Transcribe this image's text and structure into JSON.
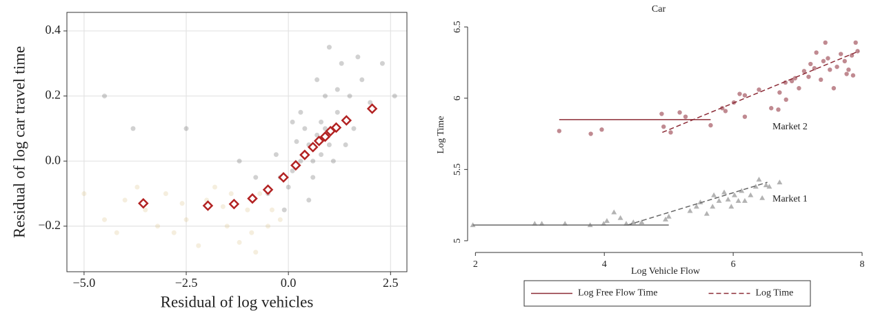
{
  "chart_data": [
    {
      "type": "scatter",
      "xlabel": "Residual of log vehicles",
      "ylabel": "Residual of log car travel time",
      "xlim": [
        -5.42,
        2.9
      ],
      "ylim": [
        -0.34,
        0.457
      ],
      "xticks": [
        {
          "value": -5.0,
          "label": "−5.0"
        },
        {
          "value": -2.5,
          "label": "−2.5"
        },
        {
          "value": 0.0,
          "label": "0.0"
        },
        {
          "value": 2.5,
          "label": "2.5"
        }
      ],
      "yticks": [
        {
          "value": -0.2,
          "label": "−0.2"
        },
        {
          "value": 0.0,
          "label": "0.0"
        },
        {
          "value": 0.2,
          "label": "0.2"
        },
        {
          "value": 0.4,
          "label": "0.4"
        }
      ],
      "grid": true,
      "series": [
        {
          "color": "#000000",
          "marker": "dot",
          "x": [
            0.5,
            0.7,
            0.9,
            0.3,
            0.1,
            1.2,
            1.5,
            0.8,
            0.6,
            1.0,
            0.2,
            -0.2,
            -0.5,
            0.0,
            1.8,
            1.3,
            0.4,
            0.9,
            1.1,
            2.0,
            -0.8,
            0.6,
            1.6,
            0.3,
            -0.3,
            2.3,
            1.0,
            0.7,
            0.5,
            1.4,
            -1.2,
            -2.5,
            -4.5,
            -3.8,
            2.6,
            0.1,
            0.8,
            1.2,
            -0.1,
            1.7
          ],
          "values": [
            0.05,
            0.08,
            0.1,
            0.0,
            -0.03,
            0.15,
            0.2,
            0.12,
            0.0,
            0.05,
            0.06,
            -0.05,
            -0.1,
            -0.08,
            0.25,
            0.3,
            0.1,
            0.2,
            0.0,
            0.18,
            -0.05,
            -0.05,
            0.1,
            0.15,
            0.02,
            0.3,
            0.35,
            0.25,
            -0.12,
            0.05,
            0.0,
            0.1,
            0.2,
            0.1,
            0.2,
            0.12,
            0.02,
            0.22,
            -0.15,
            0.32
          ]
        },
        {
          "color": "#c9a24a",
          "marker": "dot",
          "x": [
            -3.5,
            -3.0,
            -2.5,
            -2.0,
            -1.5,
            -1.0,
            -0.7,
            -0.4,
            -4.0,
            -4.5,
            -2.8,
            -1.8,
            -1.2,
            -0.5,
            -3.2,
            -2.2,
            -1.6,
            -0.9,
            -5.0,
            -3.7,
            -2.6,
            -1.4,
            -0.2,
            -4.2,
            -0.8
          ],
          "values": [
            -0.15,
            -0.1,
            -0.18,
            -0.12,
            -0.2,
            -0.15,
            -0.1,
            -0.15,
            -0.12,
            -0.18,
            -0.22,
            -0.08,
            -0.25,
            -0.2,
            -0.2,
            -0.26,
            -0.14,
            -0.22,
            -0.1,
            -0.08,
            -0.13,
            -0.1,
            -0.18,
            -0.22,
            -0.28
          ]
        },
        {
          "color": "#b22222",
          "marker": "diamond",
          "x": [
            -3.55,
            -1.97,
            -1.33,
            -0.88,
            -0.5,
            -0.12,
            0.18,
            0.4,
            0.6,
            0.75,
            0.9,
            1.03,
            1.17,
            1.42,
            2.05
          ],
          "values": [
            -0.13,
            -0.137,
            -0.132,
            -0.115,
            -0.088,
            -0.05,
            -0.013,
            0.019,
            0.043,
            0.062,
            0.075,
            0.092,
            0.103,
            0.125,
            0.161
          ]
        }
      ]
    },
    {
      "type": "scatter",
      "title": "Car",
      "xlabel": "Log Vehicle Flow",
      "ylabel": "Log Time",
      "xlim": [
        1.9,
        8.0
      ],
      "ylim": [
        4.966,
        6.52
      ],
      "xticks": [
        2,
        4,
        6,
        8
      ],
      "yticks": [
        5,
        5.5,
        6,
        6.5
      ],
      "grid": false,
      "annotations": [
        "Market 2",
        "Market 1"
      ],
      "legend": "bottom",
      "series": [
        {
          "color": "#c08a91",
          "marker": "circle",
          "x": [
            3.3,
            3.79,
            3.96,
            4.89,
            4.92,
            5.03,
            5.17,
            5.26,
            5.65,
            5.83,
            5.88,
            6.01,
            6.1,
            6.18,
            6.18,
            6.4,
            6.59,
            6.7,
            6.72,
            6.81,
            6.82,
            6.91,
            6.96,
            7.02,
            7.1,
            7.17,
            7.2,
            7.26,
            7.29,
            7.36,
            7.4,
            7.47,
            7.5,
            7.56,
            7.61,
            7.67,
            7.73,
            7.79,
            7.84,
            7.86,
            7.9,
            7.93,
            7.43,
            7.76
          ],
          "values": [
            5.77,
            5.75,
            5.78,
            5.89,
            5.8,
            5.76,
            5.9,
            5.87,
            5.81,
            5.93,
            5.91,
            5.97,
            6.03,
            6.02,
            5.87,
            6.06,
            5.93,
            5.92,
            6.04,
            6.11,
            5.99,
            6.12,
            6.14,
            6.07,
            6.19,
            6.15,
            6.24,
            6.21,
            6.32,
            6.13,
            6.26,
            6.28,
            6.2,
            6.07,
            6.22,
            6.31,
            6.26,
            6.2,
            6.3,
            6.16,
            6.39,
            6.33,
            6.39,
            6.17
          ]
        },
        {
          "color": "#b3b3b3",
          "marker": "triangle",
          "x": [
            1.96,
            2.92,
            3.03,
            3.39,
            3.78,
            3.99,
            4.04,
            4.15,
            4.25,
            4.34,
            4.45,
            4.58,
            4.95,
            5.0,
            5.33,
            5.43,
            5.49,
            5.59,
            5.68,
            5.7,
            5.78,
            5.86,
            5.92,
            5.97,
            6.02,
            6.08,
            6.13,
            6.18,
            6.27,
            6.35,
            6.4,
            6.51,
            6.56,
            6.72,
            6.45
          ],
          "values": [
            5.11,
            5.12,
            5.12,
            5.12,
            5.11,
            5.12,
            5.14,
            5.2,
            5.16,
            5.12,
            5.13,
            5.13,
            5.15,
            5.17,
            5.21,
            5.24,
            5.27,
            5.19,
            5.24,
            5.32,
            5.28,
            5.34,
            5.29,
            5.24,
            5.32,
            5.28,
            5.35,
            5.28,
            5.32,
            5.38,
            5.43,
            5.39,
            5.38,
            5.41,
            5.3
          ]
        },
        {
          "name": "Log Free Flow Time",
          "color": "#8b2a35",
          "marker": "line",
          "dash": false,
          "x": [
            3.3,
            5.65
          ],
          "values": [
            5.85,
            5.85
          ]
        },
        {
          "name": "Log Time",
          "color": "#8b2a35",
          "marker": "line",
          "dash": true,
          "x": [
            4.9,
            7.95
          ],
          "values": [
            5.76,
            6.33
          ]
        },
        {
          "color": "#666666",
          "marker": "line",
          "dash": false,
          "x": [
            1.96,
            5.0
          ],
          "values": [
            5.11,
            5.11
          ]
        },
        {
          "color": "#666666",
          "marker": "line",
          "dash": true,
          "x": [
            4.36,
            6.53
          ],
          "values": [
            5.11,
            5.41
          ]
        }
      ]
    }
  ]
}
